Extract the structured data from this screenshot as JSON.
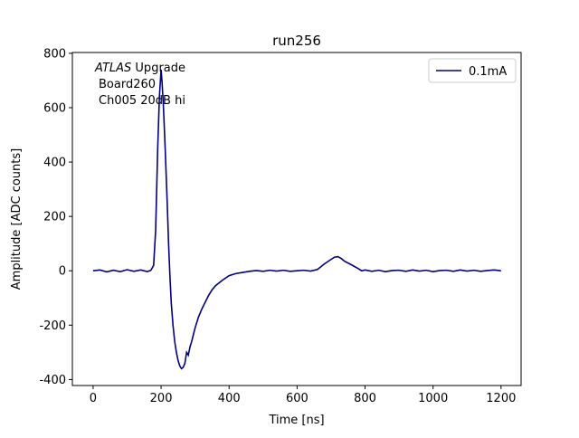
{
  "chart_data": {
    "type": "line",
    "title": "run256",
    "x_label": "Time [ns]",
    "y_label": "Amplitude [ADC counts]",
    "annotation": {
      "experiment": "ATLAS",
      "lines": [
        "Upgrade",
        "Board260",
        "Ch005 20dB hi"
      ]
    },
    "x": [
      0,
      20,
      40,
      60,
      80,
      100,
      120,
      140,
      160,
      170,
      178,
      184,
      190,
      195,
      198,
      200,
      203,
      207,
      212,
      218,
      222,
      226,
      230,
      235,
      240,
      245,
      250,
      255,
      260,
      265,
      270,
      275,
      280,
      285,
      290,
      300,
      310,
      320,
      330,
      340,
      350,
      360,
      380,
      400,
      420,
      440,
      460,
      480,
      500,
      520,
      540,
      560,
      580,
      600,
      620,
      640,
      660,
      680,
      700,
      710,
      720,
      730,
      740,
      760,
      780,
      790,
      800,
      820,
      840,
      860,
      880,
      900,
      920,
      940,
      960,
      980,
      1000,
      1020,
      1040,
      1060,
      1080,
      1100,
      1120,
      1140,
      1160,
      1180,
      1200
    ],
    "series": [
      {
        "name": "0.1mA",
        "color": "#000080",
        "values": [
          0,
          3,
          -4,
          2,
          -3,
          4,
          -2,
          3,
          -3,
          2,
          20,
          150,
          450,
          640,
          700,
          740,
          690,
          600,
          450,
          250,
          100,
          -20,
          -120,
          -200,
          -260,
          -300,
          -330,
          -350,
          -360,
          -355,
          -340,
          -300,
          -310,
          -280,
          -260,
          -210,
          -170,
          -140,
          -115,
          -90,
          -70,
          -55,
          -35,
          -18,
          -10,
          -6,
          -2,
          1,
          -2,
          2,
          -1,
          2,
          -2,
          0,
          2,
          -1,
          5,
          25,
          42,
          50,
          52,
          45,
          35,
          22,
          8,
          0,
          3,
          -2,
          2,
          -3,
          1,
          2,
          -2,
          3,
          -1,
          2,
          -3,
          1,
          2,
          -2,
          3,
          -1,
          2,
          -2,
          1,
          3,
          0
        ]
      }
    ],
    "xlim": [
      -61,
      1259
    ],
    "ylim": [
      -422,
      803
    ],
    "xticks": [
      0,
      200,
      400,
      600,
      800,
      1000,
      1200
    ],
    "yticks": [
      -400,
      -200,
      0,
      200,
      400,
      600,
      800
    ],
    "legend": "upper right"
  }
}
